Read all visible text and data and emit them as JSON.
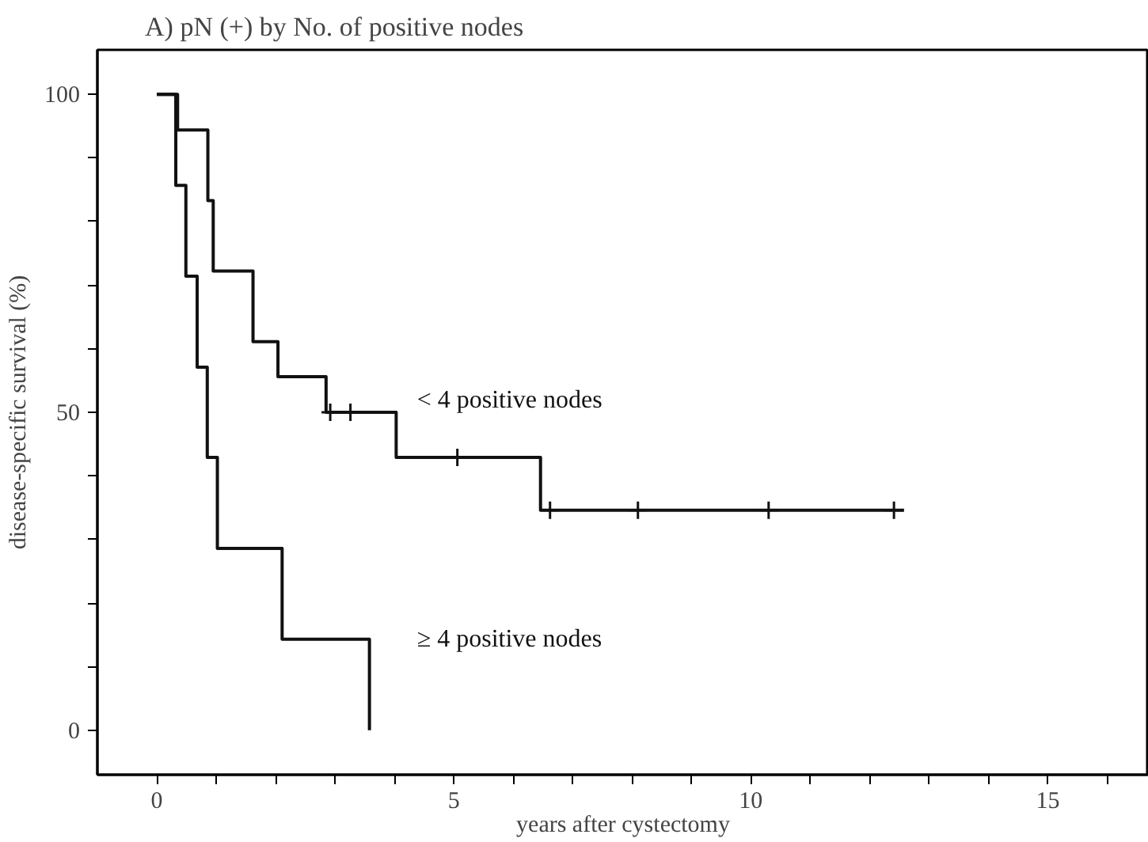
{
  "chart_data": {
    "type": "step",
    "title": "A)        pN (+) by No. of positive nodes",
    "xlabel": "years after cystectomy",
    "ylabel": "disease-specific survival (%)",
    "xlim": [
      -1,
      16.7
    ],
    "ylim": [
      -7,
      107
    ],
    "xticks": [
      0,
      {
        "value": 1,
        "label": null
      },
      {
        "value": 2,
        "label": null
      },
      {
        "value": 3,
        "label": null
      },
      {
        "value": 4,
        "label": null
      },
      5,
      {
        "value": 6,
        "label": null
      },
      {
        "value": 7,
        "label": null
      },
      {
        "value": 8,
        "label": null
      },
      {
        "value": 9,
        "label": null
      },
      10,
      {
        "value": 11,
        "label": null
      },
      {
        "value": 12,
        "label": null
      },
      {
        "value": 13,
        "label": null
      },
      {
        "value": 14,
        "label": null
      },
      15,
      {
        "value": 16,
        "label": null
      }
    ],
    "yticks": [
      0,
      {
        "value": 10,
        "label": null
      },
      {
        "value": 20,
        "label": null
      },
      {
        "value": 30,
        "label": null
      },
      {
        "value": 40,
        "label": null
      },
      50,
      {
        "value": 60,
        "label": null
      },
      {
        "value": 70,
        "label": null
      },
      {
        "value": 80,
        "label": null
      },
      {
        "value": 90,
        "label": null
      },
      100
    ],
    "grid": false,
    "line_style": "solid",
    "series": [
      {
        "name": "< 4 positive nodes",
        "color": "#111111",
        "x": [
          0,
          0.35,
          0.86,
          0.95,
          1.62,
          2.04,
          2.85,
          4.03,
          6.46,
          12.58
        ],
        "values": [
          100,
          94.4,
          83.3,
          72.2,
          61.1,
          55.6,
          50,
          42.9,
          34.6,
          34.6
        ]
      },
      {
        "name": "≥ 4 positive nodes",
        "color": "#111111",
        "x": [
          0,
          0.32,
          0.49,
          0.68,
          0.85,
          1.02,
          2.11,
          3.58
        ],
        "values": [
          100,
          85.7,
          71.4,
          57.1,
          42.9,
          28.6,
          14.3,
          0
        ]
      },
      {
        "type": "scatter",
        "marker": "cross",
        "color": "#111111",
        "x": [
          2.92,
          3.26,
          5.06,
          6.62,
          8.1,
          10.3,
          12.41
        ],
        "values": [
          50,
          50,
          42.9,
          34.6,
          34.6,
          34.6,
          34.6
        ]
      }
    ]
  }
}
